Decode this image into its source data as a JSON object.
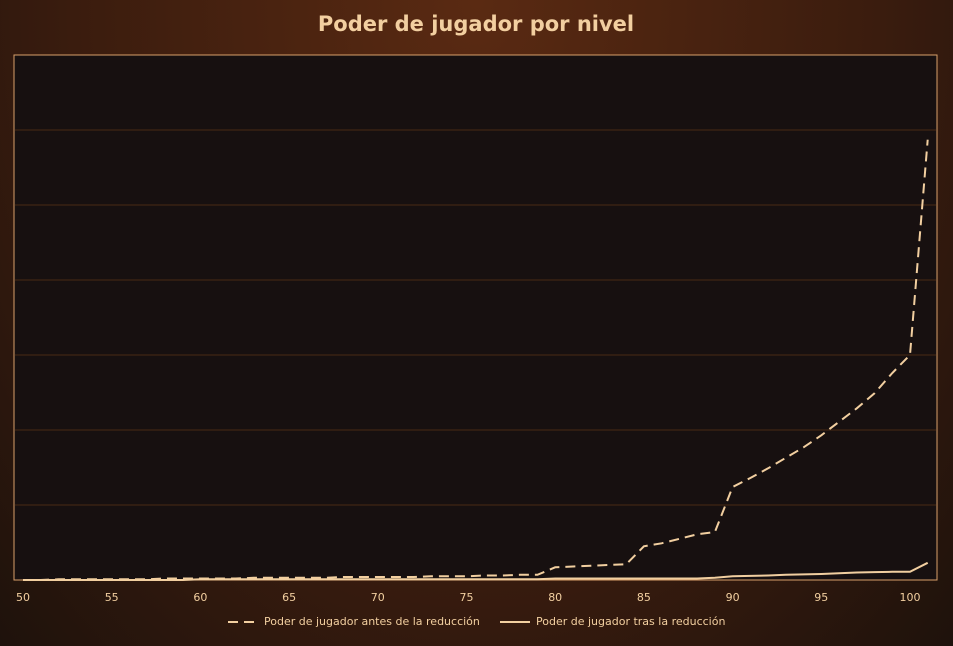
{
  "chart_data": {
    "type": "line",
    "title": "Poder de jugador por nivel",
    "x": [
      50,
      51,
      52,
      53,
      54,
      55,
      56,
      57,
      58,
      59,
      60,
      61,
      62,
      63,
      64,
      65,
      66,
      67,
      68,
      69,
      70,
      71,
      72,
      73,
      74,
      75,
      76,
      77,
      78,
      79,
      80,
      81,
      82,
      83,
      84,
      85,
      86,
      87,
      88,
      89,
      90,
      91,
      92,
      93,
      94,
      95,
      96,
      97,
      98,
      99,
      100,
      101
    ],
    "xlim": [
      50,
      101
    ],
    "xticks": [
      50,
      55,
      60,
      65,
      70,
      75,
      80,
      85,
      90,
      95,
      100
    ],
    "ylim": [
      0,
      7
    ],
    "ygrid": [
      1,
      2,
      3,
      4,
      5,
      6
    ],
    "series": [
      {
        "name": "Poder de jugador antes de la reducción",
        "color": "#f2cfa0",
        "dash": true,
        "values": [
          0,
          0,
          0.01,
          0.01,
          0.01,
          0.01,
          0.01,
          0.01,
          0.02,
          0.02,
          0.02,
          0.02,
          0.02,
          0.03,
          0.03,
          0.03,
          0.03,
          0.03,
          0.04,
          0.04,
          0.04,
          0.04,
          0.04,
          0.05,
          0.05,
          0.05,
          0.06,
          0.06,
          0.07,
          0.07,
          0.17,
          0.18,
          0.19,
          0.2,
          0.21,
          0.45,
          0.49,
          0.55,
          0.61,
          0.64,
          1.24,
          1.36,
          1.49,
          1.63,
          1.77,
          1.93,
          2.11,
          2.29,
          2.49,
          2.76,
          3.0,
          5.87
        ]
      },
      {
        "name": "Poder de jugador tras la reducción",
        "color": "#f2cfa0",
        "dash": false,
        "values": [
          0,
          0,
          0,
          0,
          0,
          0,
          0,
          0,
          0,
          0,
          0.01,
          0.01,
          0.01,
          0.01,
          0.01,
          0.01,
          0.01,
          0.01,
          0.01,
          0.01,
          0.01,
          0.01,
          0.01,
          0.01,
          0.01,
          0.01,
          0.01,
          0.01,
          0.01,
          0.01,
          0.02,
          0.02,
          0.02,
          0.02,
          0.02,
          0.02,
          0.02,
          0.02,
          0.02,
          0.03,
          0.05,
          0.055,
          0.06,
          0.07,
          0.075,
          0.08,
          0.09,
          0.1,
          0.105,
          0.11,
          0.11,
          0.23
        ]
      }
    ]
  }
}
